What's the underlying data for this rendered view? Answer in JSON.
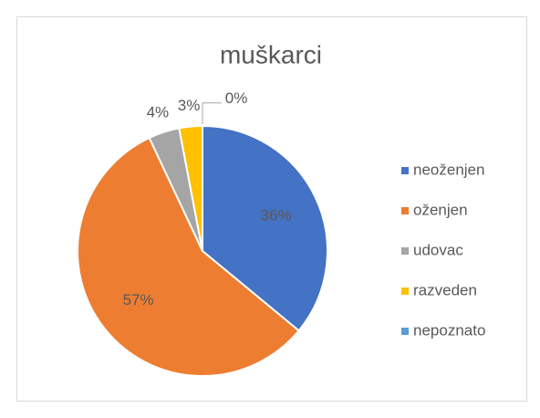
{
  "chart_data": {
    "type": "pie",
    "title": "muškarci",
    "categories": [
      "neoženjen",
      "oženjen",
      "udovac",
      "razveden",
      "nepoznato"
    ],
    "values": [
      36,
      57,
      4,
      3,
      0
    ],
    "value_labels": [
      "36%",
      "57%",
      "4%",
      "3%",
      "0%"
    ],
    "colors": [
      "#4472c4",
      "#ed7d31",
      "#a5a5a5",
      "#ffc000",
      "#5b9bd5"
    ],
    "legend": "right"
  }
}
